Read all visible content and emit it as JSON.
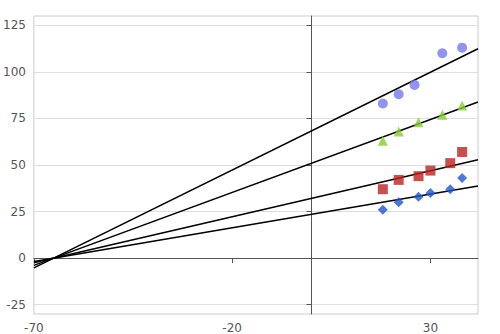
{
  "chart_data": {
    "type": "scatter",
    "xlim": [
      -70,
      42
    ],
    "xticks": [
      -70,
      -20,
      30
    ],
    "ylim": [
      -30,
      130
    ],
    "yticks": [
      -25,
      0,
      25,
      50,
      75,
      100,
      125
    ],
    "grid": true,
    "series": [
      {
        "type": "line",
        "color": "#000000",
        "x": [
          -70,
          42
        ],
        "values": [
          -5.253,
          112.414
        ]
      },
      {
        "type": "scatter",
        "color": "#7777ee",
        "marker": "circle",
        "x": [
          18,
          22,
          26,
          33,
          38
        ],
        "values": [
          83,
          88,
          93,
          110,
          113
        ]
      },
      {
        "type": "line",
        "color": "#000000",
        "x": [
          -70,
          42
        ],
        "values": [
          -3.916,
          83.801
        ]
      },
      {
        "type": "scatter",
        "color": "#88cc33",
        "marker": "triangle",
        "x": [
          18,
          22,
          27,
          33,
          38
        ],
        "values": [
          63,
          68,
          73,
          77,
          82
        ]
      },
      {
        "type": "line",
        "color": "#000000",
        "x": [
          -70,
          42
        ],
        "values": [
          -2.471,
          52.875
        ]
      },
      {
        "type": "scatter",
        "color": "#bb2222",
        "marker": "square",
        "x": [
          18,
          22,
          27,
          30,
          35,
          38
        ],
        "values": [
          37,
          42,
          44,
          47,
          51,
          57
        ]
      },
      {
        "type": "line",
        "color": "#000000",
        "x": [
          -70,
          42
        ],
        "values": [
          -1.811,
          38.746
        ]
      },
      {
        "type": "scatter",
        "color": "#2255cc",
        "marker": "diamond",
        "x": [
          18,
          22,
          27,
          30,
          35,
          38
        ],
        "values": [
          26,
          30,
          33,
          35,
          37,
          43
        ]
      }
    ]
  }
}
